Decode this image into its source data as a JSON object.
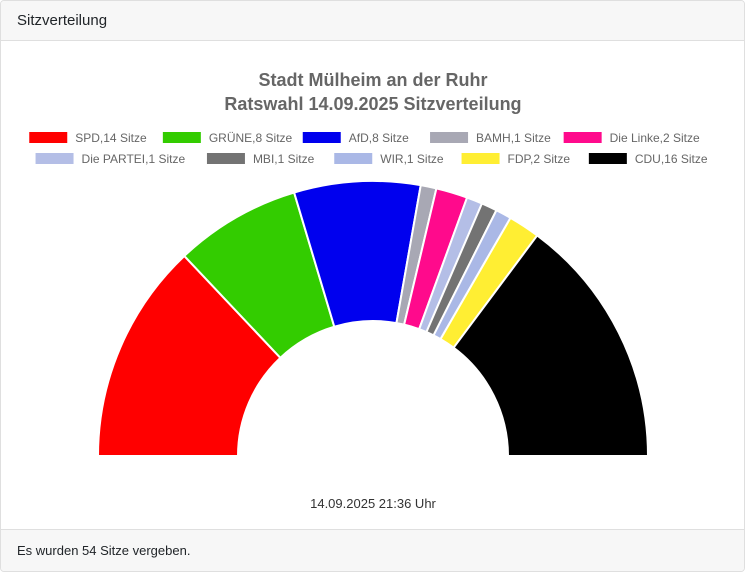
{
  "header": {
    "title": "Sitzverteilung"
  },
  "footer": {
    "text": "Es wurden 54 Sitze vergeben."
  },
  "chart_data": {
    "type": "pie",
    "variant": "parliament-semicircle",
    "title": [
      "Stadt Mülheim an der Ruhr",
      "Ratswahl 14.09.2025 Sitzverteilung"
    ],
    "total_seats": 54,
    "series": [
      {
        "name": "SPD",
        "label": "SPD,14 Sitze",
        "value": 14,
        "color": "#ff0000"
      },
      {
        "name": "GRÜNE",
        "label": "GRÜNE,8 Sitze",
        "value": 8,
        "color": "#33cc00"
      },
      {
        "name": "AfD",
        "label": "AfD,8 Sitze",
        "value": 8,
        "color": "#0000ee"
      },
      {
        "name": "BAMH",
        "label": "BAMH,1 Sitze",
        "value": 1,
        "color": "#a8a8b4"
      },
      {
        "name": "Die Linke",
        "label": "Die Linke,2 Sitze",
        "value": 2,
        "color": "#ff0a8c"
      },
      {
        "name": "Die PARTEI",
        "label": "Die PARTEI,1 Sitze",
        "value": 1,
        "color": "#b4bee6"
      },
      {
        "name": "MBI",
        "label": "MBI,1 Sitze",
        "value": 1,
        "color": "#737373"
      },
      {
        "name": "WIR",
        "label": "WIR,1 Sitze",
        "value": 1,
        "color": "#aab8e6"
      },
      {
        "name": "FDP",
        "label": "FDP,2 Sitze",
        "value": 2,
        "color": "#ffee33"
      },
      {
        "name": "CDU",
        "label": "CDU,16 Sitze",
        "value": 16,
        "color": "#000000"
      }
    ],
    "timestamp": "14.09.2025 21:36 Uhr"
  }
}
